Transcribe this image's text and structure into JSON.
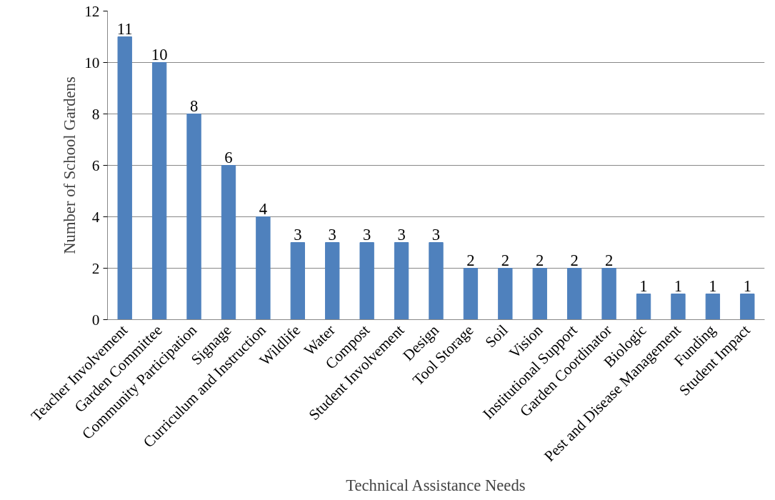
{
  "chart_data": {
    "type": "bar",
    "xlabel": "Technical Assistance Needs",
    "ylabel": "Number of School Gardens",
    "categories": [
      "Teacher Involvement",
      "Garden Committee",
      "Community Participation",
      "Signage",
      "Curriculum and Instruction",
      "Wildlife",
      "Water",
      "Compost",
      "Student Involvement",
      "Design",
      "Tool Storage",
      "Soil",
      "Vision",
      "Institutional Support",
      "Garden Coordinator",
      "Biologic",
      "Pest and Disease Management",
      "Funding",
      "Student Impact"
    ],
    "values": [
      11,
      10,
      8,
      6,
      4,
      3,
      3,
      3,
      3,
      3,
      2,
      2,
      2,
      2,
      2,
      1,
      1,
      1,
      1
    ],
    "color": "#4f81bd",
    "ylim": [
      0,
      12
    ],
    "yticks": [
      0,
      2,
      4,
      6,
      8,
      10,
      12
    ],
    "grid": "y",
    "data_labels": true
  }
}
